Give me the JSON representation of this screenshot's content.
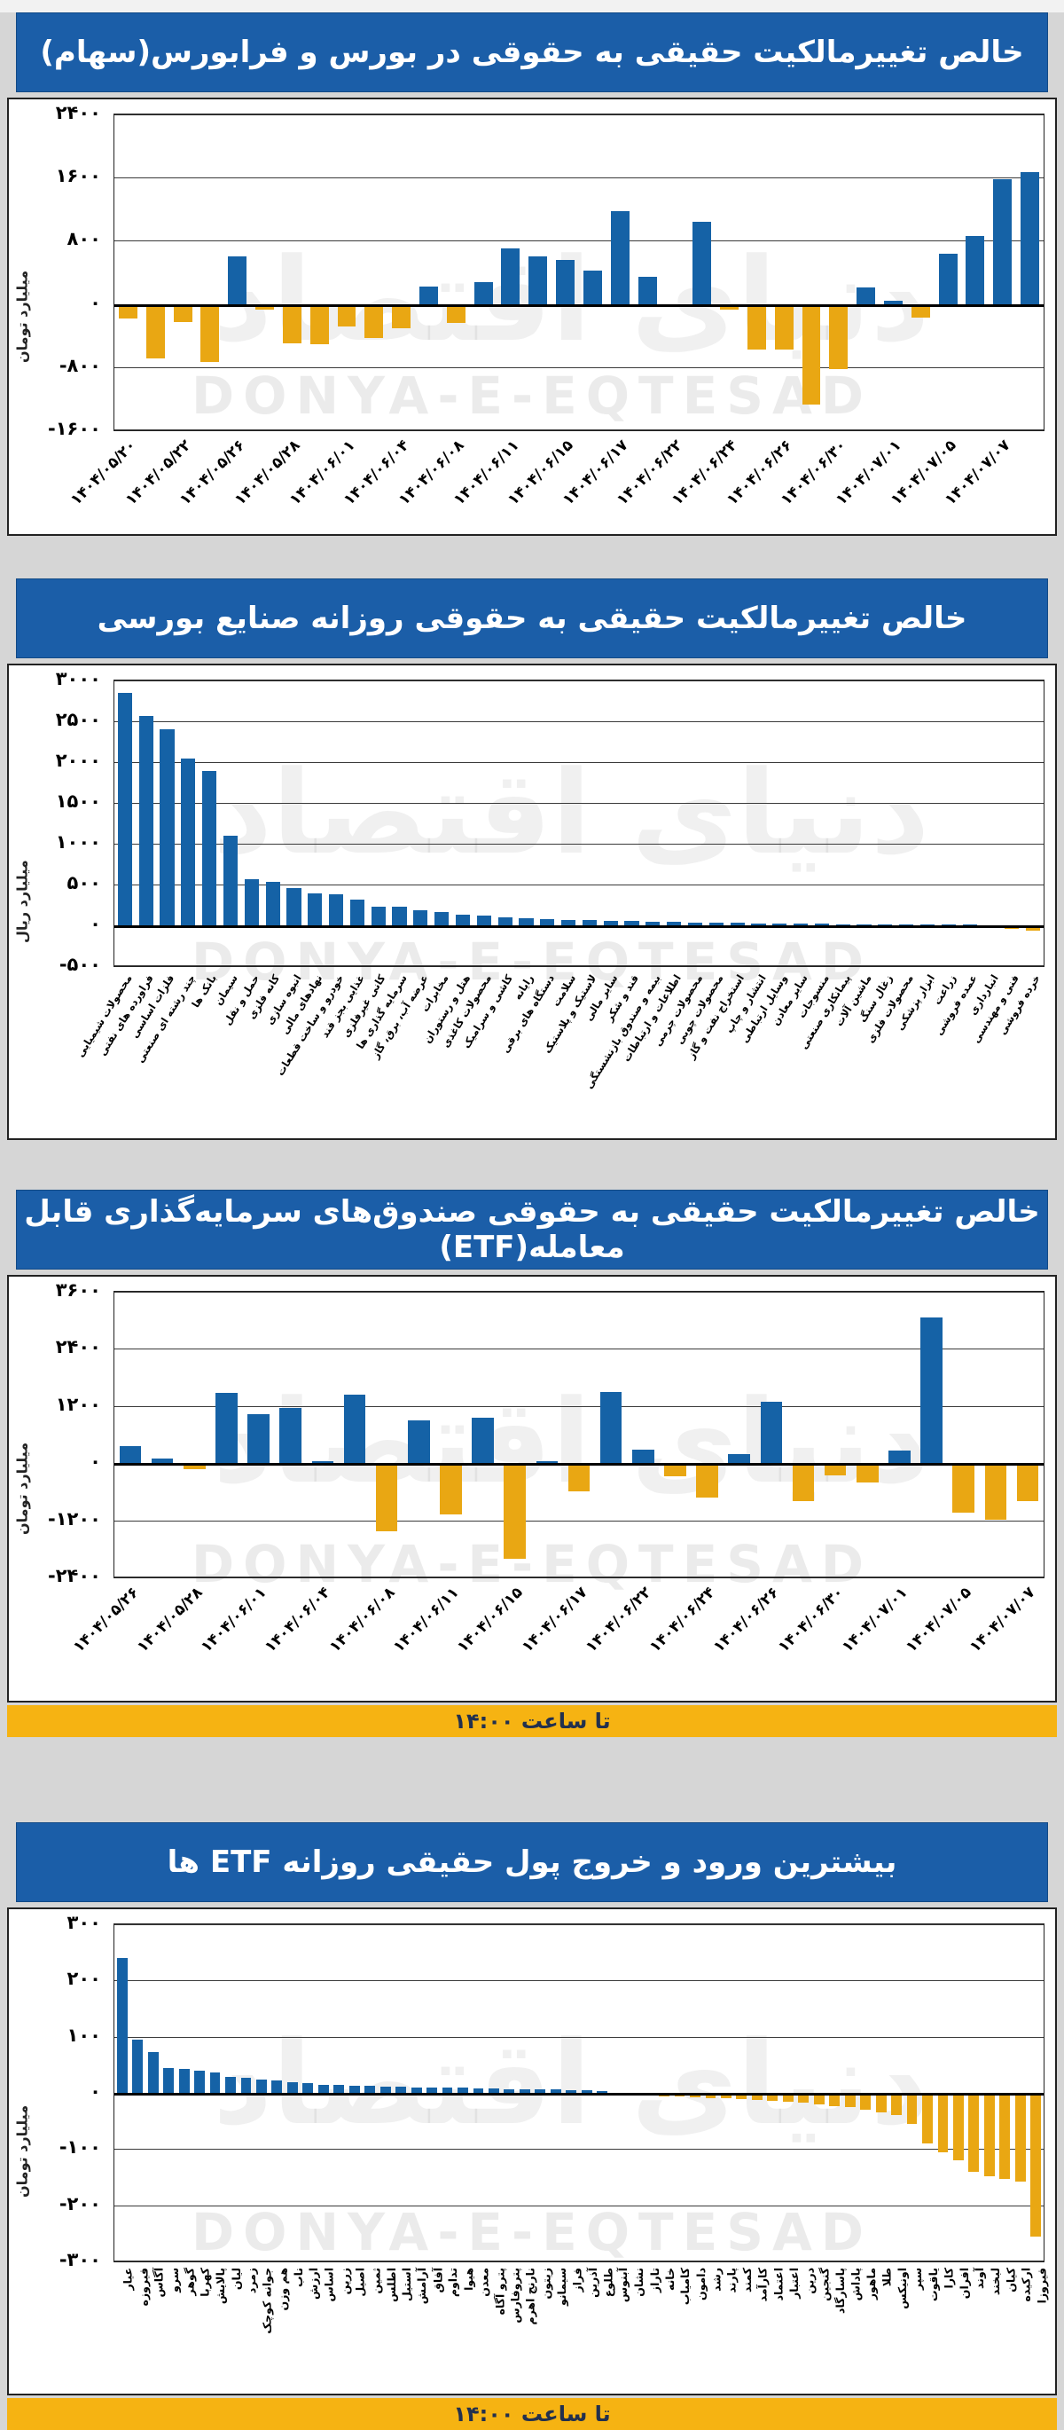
{
  "page": {
    "watermark_latin": "DONYA-E-EQTESAD",
    "watermark_persian": "دنیای اقتصاد"
  },
  "colors": {
    "header_bg": "#1b5ea8",
    "header_text": "#ffffff",
    "bar_positive": "#1562a6",
    "bar_negative": "#e9a713",
    "strip_bg": "#f6b312",
    "strip_text": "#22304e"
  },
  "strip_label": "تا ساعت ۱۴:۰۰",
  "chart_data": [
    {
      "type": "bar",
      "title": "خالص تغییرمالکیت حقیقی به حقوقی در بورس و فرابورس(سهام)",
      "y_axis_label": "میلیارد تومان",
      "ylim": [
        -1600,
        2400
      ],
      "grid": true,
      "y_ticks": [
        {
          "value": 2400,
          "label": "۲۴۰۰"
        },
        {
          "value": 1600,
          "label": "۱۶۰۰"
        },
        {
          "value": 800,
          "label": "۸۰۰"
        },
        {
          "value": 0,
          "label": "۰"
        },
        {
          "value": -800,
          "label": "-۸۰۰"
        },
        {
          "value": -1600,
          "label": "-۱۶۰۰"
        }
      ],
      "values": [
        -180,
        -690,
        -230,
        -740,
        600,
        -70,
        -500,
        -510,
        -280,
        -430,
        -310,
        215,
        -240,
        280,
        700,
        600,
        560,
        420,
        1180,
        340,
        -40,
        1040,
        -75,
        -580,
        -580,
        -1270,
        -820,
        205,
        40,
        -170,
        640,
        860,
        1580,
        1670
      ],
      "x_labels": [
        "۱۴۰۴/۰۵/۲۰",
        "",
        "۱۴۰۴/۰۵/۲۲",
        "",
        "۱۴۰۴/۰۵/۲۶",
        "",
        "۱۴۰۴/۰۵/۲۸",
        "",
        "۱۴۰۴/۰۶/۰۱",
        "",
        "۱۴۰۴/۰۶/۰۴",
        "",
        "۱۴۰۴/۰۶/۰۸",
        "",
        "۱۴۰۴/۰۶/۱۱",
        "",
        "۱۴۰۴/۰۶/۱۵",
        "",
        "۱۴۰۴/۰۶/۱۷",
        "",
        "۱۴۰۴/۰۶/۲۲",
        "",
        "۱۴۰۴/۰۶/۲۴",
        "",
        "۱۴۰۴/۰۶/۲۶",
        "",
        "۱۴۰۴/۰۶/۳۰",
        "",
        "۱۴۰۴/۰۷/۰۱",
        "",
        "۱۴۰۴/۰۷/۰۵",
        "",
        "۱۴۰۴/۰۷/۰۷",
        ""
      ]
    },
    {
      "type": "bar",
      "title": "خالص تغییرمالکیت حقیقی به حقوقی روزانه صنایع بورسی",
      "y_axis_label": "میلیارد ریال",
      "ylim": [
        -500,
        3000
      ],
      "grid": true,
      "y_ticks": [
        {
          "value": 3000,
          "label": "۳۰۰۰"
        },
        {
          "value": 2500,
          "label": "۲۵۰۰"
        },
        {
          "value": 2000,
          "label": "۲۰۰۰"
        },
        {
          "value": 1500,
          "label": "۱۵۰۰"
        },
        {
          "value": 1000,
          "label": "۱۰۰۰"
        },
        {
          "value": 500,
          "label": "۵۰۰"
        },
        {
          "value": 0,
          "label": "۰"
        },
        {
          "value": -500,
          "label": "-۵۰۰"
        }
      ],
      "values": [
        2850,
        2570,
        2400,
        2040,
        1890,
        1100,
        560,
        530,
        460,
        390,
        385,
        320,
        230,
        225,
        180,
        160,
        130,
        115,
        95,
        85,
        75,
        70,
        62,
        55,
        50,
        45,
        40,
        36,
        32,
        28,
        25,
        22,
        20,
        18,
        15,
        13,
        11,
        9,
        8,
        6,
        5,
        -30,
        -45,
        -60
      ],
      "x_labels": [
        "محصولات شیمیایی",
        "فراورده های نفتی",
        "فلزات اساسی",
        "چند رشته ای صنعتی",
        "بانک ها",
        "سیمان",
        "حمل و نقل",
        "کانه فلزی",
        "انبوه سازی",
        "نهادهای مالی",
        "خودرو و ساخت قطعات",
        "غذایی بجز قند",
        "کانی غیرفلزی",
        "سرمایه گذاری ها",
        "عرضه آب، برق، گاز",
        "مخابرات",
        "هتل و رستوران",
        "محصولات کاغذی",
        "کاشی و سرامیک",
        "رایانه",
        "دستگاه های برقی",
        "سلامت",
        "لاستیک و پلاستیک",
        "سایر مالی",
        "قند و شکر",
        "بیمه و صندوق بازنشستگی",
        "اطلاعات و ارتباطات",
        "محصولات چرمی",
        "محصولات چوبی",
        "استخراج نفت و گاز",
        "انتشار و چاپ",
        "وسایل ارتباطی",
        "سایر معادن",
        "منسوجات",
        "پیمانکاری صنعتی",
        "ماشین آلات",
        "زغال سنگ",
        "محصولات فلزی",
        "ابزار پزشکی",
        "زراعت",
        "عمده فروشی",
        "انبارداری",
        "فنی و مهندسی",
        "خرده فروشی"
      ]
    },
    {
      "type": "bar",
      "title": "خالص تغییرمالکیت حقیقی به حقوقی صندوق‌های سرمایه‌گذاری قابل معامله(ETF)",
      "y_axis_label": "میلیارد تومان",
      "ylim": [
        -2400,
        3600
      ],
      "grid": true,
      "y_ticks": [
        {
          "value": 3600,
          "label": "۳۶۰۰"
        },
        {
          "value": 2400,
          "label": "۲۴۰۰"
        },
        {
          "value": 1200,
          "label": "۱۲۰۰"
        },
        {
          "value": 0,
          "label": "۰"
        },
        {
          "value": -1200,
          "label": "-۱۲۰۰"
        },
        {
          "value": -2400,
          "label": "-۲۴۰۰"
        }
      ],
      "values": [
        355,
        93,
        -130,
        1475,
        1030,
        1160,
        40,
        1440,
        -1440,
        900,
        -1080,
        950,
        -2000,
        40,
        -600,
        1500,
        280,
        -270,
        -730,
        190,
        1290,
        -790,
        -250,
        -415,
        270,
        3065,
        -1040,
        -1180,
        -790
      ],
      "x_labels": [
        "۱۴۰۴/۰۵/۲۶",
        "",
        "۱۴۰۴/۰۵/۲۸",
        "",
        "۱۴۰۴/۰۶/۰۱",
        "",
        "۱۴۰۴/۰۶/۰۴",
        "",
        "۱۴۰۴/۰۶/۰۸",
        "",
        "۱۴۰۴/۰۶/۱۱",
        "",
        "۱۴۰۴/۰۶/۱۵",
        "",
        "۱۴۰۴/۰۶/۱۷",
        "",
        "۱۴۰۴/۰۶/۲۲",
        "",
        "۱۴۰۴/۰۶/۲۴",
        "",
        "۱۴۰۴/۰۶/۲۶",
        "",
        "۱۴۰۴/۰۶/۳۰",
        "",
        "۱۴۰۴/۰۷/۰۱",
        "",
        "۱۴۰۴/۰۷/۰۵",
        "",
        "۱۴۰۴/۰۷/۰۷"
      ]
    },
    {
      "type": "bar",
      "title": "بیشترین ورود و خروج پول حقیقی روزانه ETF ها",
      "y_axis_label": "میلیارد تومان",
      "ylim": [
        -300,
        300
      ],
      "grid": true,
      "y_ticks": [
        {
          "value": 300,
          "label": "۳۰۰"
        },
        {
          "value": 200,
          "label": "۲۰۰"
        },
        {
          "value": 100,
          "label": "۱۰۰"
        },
        {
          "value": 0,
          "label": "۰"
        },
        {
          "value": -100,
          "label": "-۱۰۰"
        },
        {
          "value": -200,
          "label": "-۲۰۰"
        },
        {
          "value": -300,
          "label": "-۳۰۰"
        }
      ],
      "values": [
        240,
        95,
        72,
        45,
        42,
        40,
        36,
        28,
        27,
        24,
        22,
        19,
        17,
        15,
        14,
        13,
        12,
        11,
        11,
        10,
        10,
        9,
        9,
        8,
        8,
        7,
        7,
        6,
        6,
        5,
        4,
        3,
        -3,
        -4,
        -5,
        -6,
        -7,
        -8,
        -9,
        -10,
        -11,
        -12,
        -14,
        -16,
        -18,
        -20,
        -23,
        -26,
        -30,
        -35,
        -40,
        -55,
        -90,
        -105,
        -120,
        -140,
        -148,
        -153,
        -158,
        -255
      ],
      "x_labels": [
        "عیار",
        "فیروزه",
        "آگاس",
        "سرو",
        "گوهر",
        "کهربا",
        "پالایش",
        "لیان",
        "زمرد",
        "جوانه کوچک",
        "هم وزن",
        "ناب",
        "ارزش",
        "اساس",
        "زرین",
        "اصیل",
        "ثمین",
        "اطلس",
        "استیل",
        "آرامش",
        "آفاق",
        "تداوم",
        "هیوا",
        "معدن",
        "پترو آگاه",
        "پتروفارس",
        "نارنج اهرم",
        "زیتون",
        "سیمانو",
        "فراز",
        "آذرین",
        "طلوع",
        "آبنوس",
        "نشان",
        "تاراز",
        "خانه",
        "کامیاب",
        "دامون",
        "رشد",
        "پارند",
        "کمند",
        "کارآمد",
        "اعتماد",
        "اعتبار",
        "درین",
        "گنجین",
        "پاسارگاد",
        "پاداش",
        "ماهور",
        "طلا",
        "اونیکس",
        "سپر",
        "یاقوت",
        "کارا",
        "افران",
        "آوند",
        "لبخند",
        "کیان",
        "ارکیده",
        "فیروزا"
      ]
    }
  ]
}
